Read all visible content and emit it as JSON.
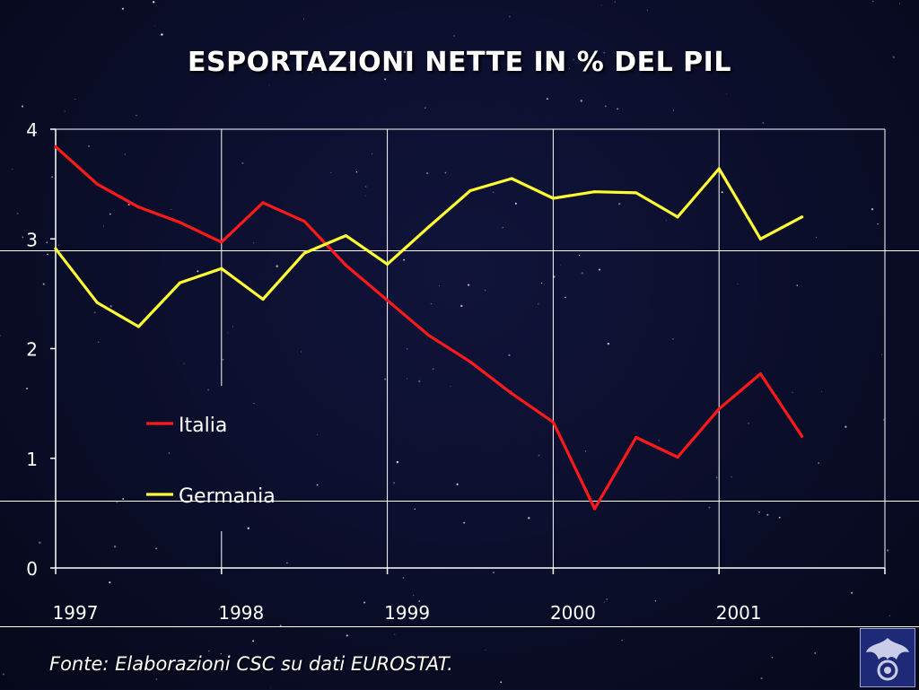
{
  "title": "ESPORTAZIONI NETTE IN % DEL PIL",
  "source": "Fonte: Elaborazioni CSC su dati  EUROSTAT.",
  "logo_icon": "eagle-emblem-icon",
  "colors": {
    "background": "#0b0e2a",
    "axis": "#ffffff",
    "italia": "#ff1a1a",
    "germania": "#ffff33"
  },
  "chart_data": {
    "type": "line",
    "title": "ESPORTAZIONI NETTE IN % DEL PIL",
    "xlabel": "",
    "ylabel": "",
    "x_tick_labels": [
      "1997",
      "1998",
      "1999",
      "2000",
      "2001"
    ],
    "y_tick_labels": [
      "0",
      "1",
      "2",
      "3",
      "4"
    ],
    "ylim": [
      0,
      4
    ],
    "xlim": [
      1997.0,
      2002.0
    ],
    "grid": "vertical",
    "legend_position": "inside-left",
    "x": [
      1997.0,
      1997.25,
      1997.5,
      1997.75,
      1998.0,
      1998.25,
      1998.5,
      1998.75,
      1999.0,
      1999.25,
      1999.5,
      1999.75,
      2000.0,
      2000.25,
      2000.5,
      2000.75,
      2001.0,
      2001.25,
      2001.5
    ],
    "series": [
      {
        "name": "Italia",
        "color": "#ff1a1a",
        "values": [
          3.84,
          3.5,
          3.29,
          3.15,
          2.97,
          3.33,
          3.16,
          2.76,
          2.44,
          2.12,
          1.88,
          1.59,
          1.33,
          0.54,
          1.19,
          1.01,
          1.45,
          1.77,
          1.2
        ]
      },
      {
        "name": "Germania",
        "color": "#ffff33",
        "values": [
          2.91,
          2.42,
          2.2,
          2.6,
          2.73,
          2.45,
          2.87,
          3.03,
          2.77,
          3.11,
          3.44,
          3.55,
          3.37,
          3.43,
          3.42,
          3.2,
          3.64,
          3.0,
          3.2
        ]
      }
    ]
  }
}
